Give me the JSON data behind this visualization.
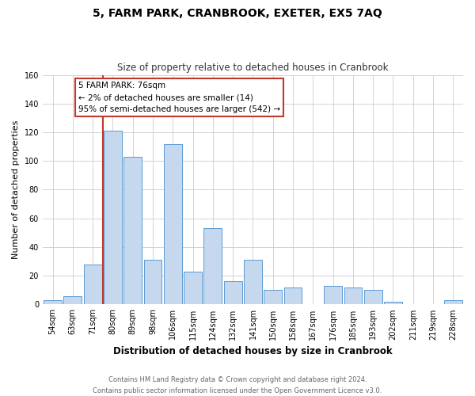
{
  "title": "5, FARM PARK, CRANBROOK, EXETER, EX5 7AQ",
  "subtitle": "Size of property relative to detached houses in Cranbrook",
  "xlabel": "Distribution of detached houses by size in Cranbrook",
  "ylabel": "Number of detached properties",
  "footer_line1": "Contains HM Land Registry data © Crown copyright and database right 2024.",
  "footer_line2": "Contains public sector information licensed under the Open Government Licence v3.0.",
  "bar_color": "#c5d8ed",
  "bar_edge_color": "#5b9bd5",
  "categories": [
    "54sqm",
    "63sqm",
    "71sqm",
    "80sqm",
    "89sqm",
    "98sqm",
    "106sqm",
    "115sqm",
    "124sqm",
    "132sqm",
    "141sqm",
    "150sqm",
    "158sqm",
    "167sqm",
    "176sqm",
    "185sqm",
    "193sqm",
    "202sqm",
    "211sqm",
    "219sqm",
    "228sqm"
  ],
  "values": [
    3,
    6,
    28,
    121,
    103,
    31,
    112,
    23,
    53,
    16,
    31,
    10,
    12,
    0,
    13,
    12,
    10,
    2,
    0,
    0,
    3
  ],
  "vline_x_index": 2.5,
  "vline_color": "#c0392b",
  "annotation_title": "5 FARM PARK: 76sqm",
  "annotation_line1": "← 2% of detached houses are smaller (14)",
  "annotation_line2": "95% of semi-detached houses are larger (542) →",
  "annotation_box_color": "#ffffff",
  "annotation_box_edge": "#c0392b",
  "ylim": [
    0,
    160
  ],
  "yticks": [
    0,
    20,
    40,
    60,
    80,
    100,
    120,
    140,
    160
  ],
  "bg_color": "#ffffff",
  "grid_color": "#cccccc",
  "title_fontsize": 10,
  "subtitle_fontsize": 8.5,
  "ylabel_fontsize": 8,
  "xlabel_fontsize": 8.5,
  "tick_fontsize": 7,
  "annotation_fontsize": 7.5,
  "footer_fontsize": 6
}
